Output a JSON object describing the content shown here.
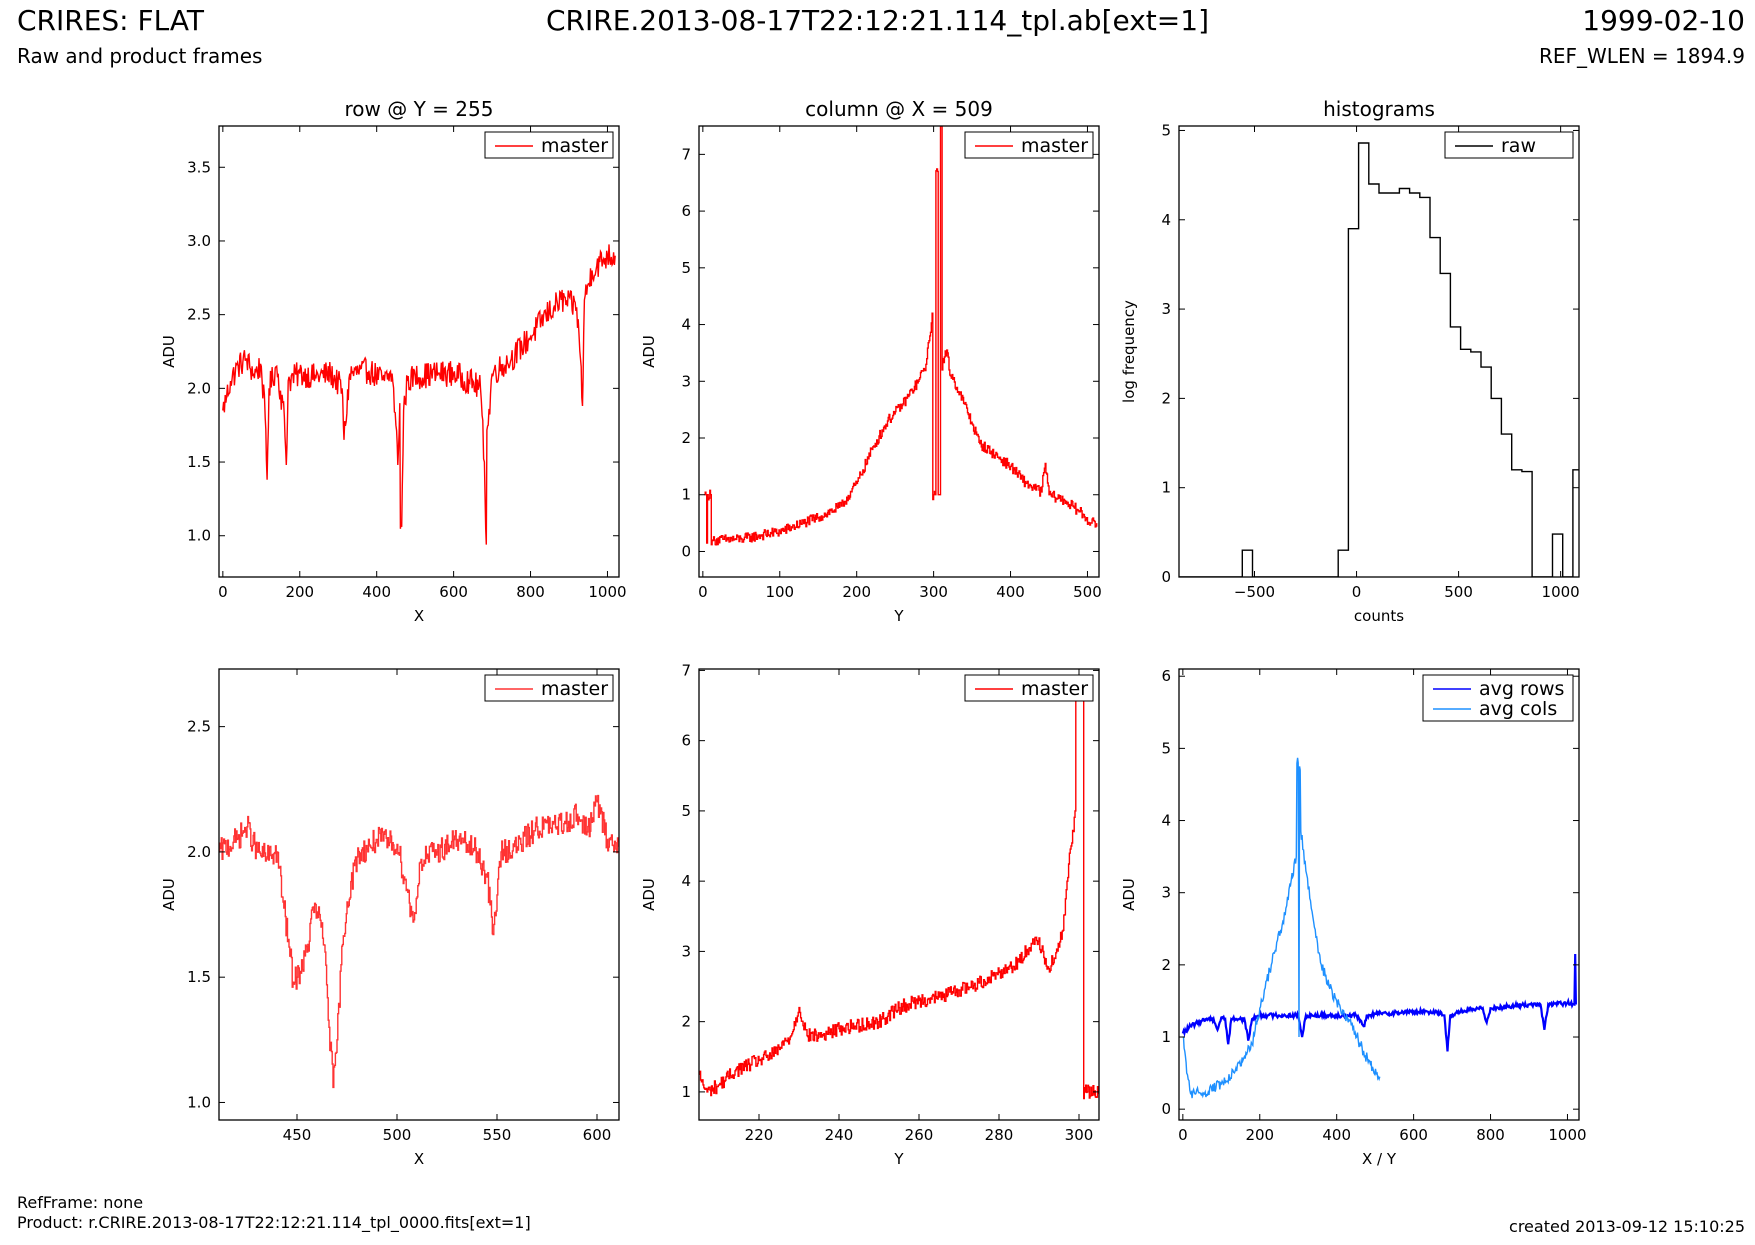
{
  "header": {
    "title": "CRIRES: FLAT",
    "subtitle": "Raw and product frames",
    "center_title": "CRIRE.2013-08-17T22:12:21.114_tpl.ab[ext=1]",
    "date": "1999-02-10",
    "ref_wlen": "REF_WLEN = 1894.9"
  },
  "footer": {
    "ref_frame": "RefFrame: none",
    "product": "Product: r.CRIRE.2013-08-17T22:12:21.114_tpl_0000.fits[ext=1]",
    "created": "created 2013-09-12 15:10:25"
  },
  "colors": {
    "master": "#ff0000",
    "master_zoom": "#ff3333",
    "raw": "#000000",
    "avg_rows": "#0000ff",
    "avg_cols": "#1e90ff"
  },
  "chart_data": [
    {
      "id": "p1",
      "type": "line",
      "title": "row @ Y = 255",
      "xlabel": "X",
      "ylabel": "ADU",
      "xlim": [
        -10,
        1030
      ],
      "ylim": [
        0.72,
        3.78
      ],
      "xticks": [
        0,
        200,
        400,
        600,
        800,
        1000
      ],
      "yticks": [
        1.0,
        1.5,
        2.0,
        2.5,
        3.0,
        3.5
      ],
      "ytick_decimals": 1,
      "legend": "top-right",
      "series": [
        {
          "name": "master",
          "color": "#ff0000",
          "step": false,
          "x": [
            0,
            10,
            20,
            40,
            60,
            80,
            100,
            110,
            115,
            120,
            140,
            160,
            165,
            170,
            200,
            240,
            280,
            310,
            315,
            330,
            380,
            420,
            440,
            450,
            455,
            460,
            465,
            470,
            480,
            500,
            560,
            600,
            640,
            670,
            680,
            685,
            690,
            700,
            750,
            800,
            840,
            880,
            920,
            930,
            935,
            940,
            960,
            1000,
            1020
          ],
          "y": [
            1.85,
            1.95,
            2.05,
            2.15,
            2.2,
            2.1,
            2.15,
            1.8,
            1.38,
            2.0,
            2.15,
            1.8,
            1.48,
            2.05,
            2.1,
            2.08,
            2.1,
            2.0,
            1.65,
            2.1,
            2.12,
            2.05,
            2.1,
            1.75,
            1.48,
            1.9,
            1.06,
            1.85,
            2.05,
            2.08,
            2.1,
            2.1,
            2.05,
            2.0,
            1.5,
            0.94,
            1.75,
            2.1,
            2.2,
            2.35,
            2.5,
            2.6,
            2.55,
            2.2,
            1.88,
            2.6,
            2.8,
            2.9,
            2.9
          ],
          "noise": 0.09
        }
      ]
    },
    {
      "id": "p2",
      "type": "line",
      "title": "column @ X = 509",
      "xlabel": "Y",
      "ylabel": "ADU",
      "xlim": [
        -5,
        515
      ],
      "ylim": [
        -0.45,
        7.5
      ],
      "xticks": [
        0,
        100,
        200,
        300,
        400,
        500
      ],
      "yticks": [
        0,
        1,
        2,
        3,
        4,
        5,
        6,
        7
      ],
      "ytick_decimals": 0,
      "legend": "top-right",
      "series": [
        {
          "name": "master",
          "color": "#ff0000",
          "step": true,
          "x": [
            2,
            4,
            5,
            6,
            10,
            11,
            12,
            15,
            50,
            100,
            150,
            180,
            200,
            220,
            240,
            260,
            280,
            290,
            295,
            298,
            300,
            302,
            305,
            306,
            307,
            308,
            309,
            310,
            311,
            312,
            318,
            320,
            340,
            360,
            380,
            400,
            420,
            440,
            445,
            450,
            470,
            490,
            505,
            512
          ],
          "y": [
            1.0,
            1.0,
            0.15,
            1.0,
            1.0,
            0.12,
            0.2,
            0.2,
            0.22,
            0.35,
            0.6,
            0.8,
            1.2,
            1.8,
            2.3,
            2.6,
            3.0,
            3.3,
            3.8,
            4.2,
            1.0,
            1.0,
            6.7,
            1.0,
            1.0,
            1.0,
            7.5,
            7.5,
            3.2,
            3.4,
            3.5,
            3.2,
            2.6,
            1.9,
            1.7,
            1.5,
            1.2,
            1.05,
            1.55,
            1.0,
            0.9,
            0.7,
            0.5,
            0.5
          ],
          "noise": 0.09
        }
      ]
    },
    {
      "id": "p3",
      "type": "line",
      "title": "histograms",
      "xlabel": "counts",
      "ylabel": "log frequency",
      "xlim": [
        -870,
        1090
      ],
      "ylim": [
        0,
        5.05
      ],
      "xticks": [
        -500,
        0,
        500,
        1000
      ],
      "yticks": [
        0,
        1,
        2,
        3,
        4,
        5
      ],
      "ytick_decimals": 0,
      "legend": "top-right",
      "series": [
        {
          "name": "raw",
          "color": "#000000",
          "step": true,
          "x": [
            -870,
            -560,
            -510,
            -90,
            -40,
            10,
            60,
            110,
            160,
            210,
            260,
            310,
            360,
            410,
            460,
            510,
            560,
            610,
            660,
            710,
            760,
            810,
            860,
            910,
            960,
            1010,
            1060,
            1090
          ],
          "y": [
            0,
            0.3,
            0,
            0.3,
            3.9,
            4.86,
            4.4,
            4.3,
            4.3,
            4.35,
            4.3,
            4.25,
            3.8,
            3.4,
            2.8,
            2.55,
            2.52,
            2.35,
            2.0,
            1.6,
            1.2,
            1.18,
            0,
            0,
            0.48,
            0,
            1.2,
            1.2
          ],
          "noise": 0
        }
      ]
    },
    {
      "id": "p4",
      "type": "line",
      "xlabel": "X",
      "ylabel": "ADU",
      "xlim": [
        411,
        611
      ],
      "ylim": [
        0.93,
        2.73
      ],
      "xticks": [
        450,
        500,
        550,
        600
      ],
      "yticks": [
        1.0,
        1.5,
        2.0,
        2.5
      ],
      "ytick_decimals": 1,
      "legend": "top-right",
      "series": [
        {
          "name": "master",
          "color": "#ff3333",
          "step": true,
          "x": [
            411,
            420,
            425,
            430,
            435,
            440,
            443,
            446,
            448,
            450,
            455,
            458,
            460,
            462,
            464,
            466,
            468,
            470,
            472,
            475,
            480,
            490,
            500,
            505,
            508,
            512,
            520,
            530,
            540,
            545,
            548,
            552,
            560,
            570,
            580,
            590,
            595,
            600,
            605,
            611
          ],
          "y": [
            2.0,
            2.05,
            2.1,
            2.0,
            1.98,
            2.0,
            1.8,
            1.62,
            1.48,
            1.5,
            1.6,
            1.78,
            1.76,
            1.7,
            1.6,
            1.3,
            1.06,
            1.25,
            1.55,
            1.8,
            1.98,
            2.05,
            2.03,
            1.85,
            1.72,
            1.97,
            2.0,
            2.05,
            2.0,
            1.9,
            1.67,
            2.0,
            2.02,
            2.1,
            2.1,
            2.15,
            2.08,
            2.2,
            2.05,
            2.02
          ],
          "noise": 0.05
        }
      ]
    },
    {
      "id": "p5",
      "type": "line",
      "xlabel": "Y",
      "ylabel": "ADU",
      "xlim": [
        205,
        305
      ],
      "ylim": [
        0.6,
        7.02
      ],
      "xticks": [
        220,
        240,
        260,
        280,
        300
      ],
      "yticks": [
        1,
        2,
        3,
        4,
        5,
        6,
        7
      ],
      "ytick_decimals": 0,
      "legend": "top-right",
      "series": [
        {
          "name": "master",
          "color": "#ff0000",
          "step": true,
          "x": [
            205,
            206,
            207,
            210,
            214,
            220,
            224,
            228,
            230,
            232,
            236,
            240,
            250,
            255,
            260,
            265,
            270,
            275,
            280,
            285,
            289,
            291,
            292,
            294,
            296,
            297,
            298,
            299,
            300,
            301,
            301.5,
            302,
            305
          ],
          "y": [
            1.25,
            1.1,
            1.0,
            1.1,
            1.3,
            1.45,
            1.55,
            1.8,
            2.2,
            1.8,
            1.8,
            1.9,
            2.0,
            2.2,
            2.3,
            2.35,
            2.45,
            2.55,
            2.7,
            2.85,
            3.2,
            3.0,
            2.75,
            2.9,
            3.3,
            4.0,
            4.5,
            5.0,
            6.7,
            6.7,
            1.0,
            1.0,
            1.0
          ],
          "noise": 0.1
        }
      ]
    },
    {
      "id": "p6",
      "type": "line",
      "xlabel": "X / Y",
      "ylabel": "ADU",
      "xlim": [
        -10,
        1030
      ],
      "ylim": [
        -0.15,
        6.1
      ],
      "xticks": [
        0,
        200,
        400,
        600,
        800,
        1000
      ],
      "yticks": [
        0,
        1,
        2,
        3,
        4,
        5,
        6
      ],
      "ytick_decimals": 0,
      "legend": "top-right",
      "series": [
        {
          "name": "avg rows",
          "color": "#0000ff",
          "step": false,
          "x": [
            0,
            20,
            60,
            80,
            90,
            100,
            110,
            118,
            126,
            140,
            160,
            170,
            180,
            200,
            240,
            300,
            310,
            320,
            400,
            450,
            470,
            480,
            500,
            600,
            660,
            680,
            688,
            695,
            720,
            780,
            790,
            800,
            900,
            930,
            940,
            950,
            1000,
            1018,
            1020,
            1022
          ],
          "y": [
            1.05,
            1.15,
            1.25,
            1.25,
            1.1,
            1.27,
            1.25,
            0.9,
            1.25,
            1.25,
            1.25,
            0.95,
            1.25,
            1.3,
            1.3,
            1.3,
            1.0,
            1.3,
            1.3,
            1.3,
            1.15,
            1.3,
            1.32,
            1.35,
            1.35,
            1.3,
            0.8,
            1.3,
            1.35,
            1.4,
            1.2,
            1.4,
            1.45,
            1.45,
            1.1,
            1.45,
            1.47,
            1.45,
            2.15,
            1.45
          ],
          "noise": 0.03
        },
        {
          "name": "avg cols",
          "color": "#1e90ff",
          "step": false,
          "x": [
            0,
            5,
            10,
            20,
            50,
            100,
            150,
            180,
            200,
            230,
            260,
            280,
            295,
            300,
            302,
            305,
            310,
            312,
            320,
            340,
            360,
            380,
            400,
            420,
            440,
            460,
            480,
            495,
            505,
            512
          ],
          "y": [
            1.0,
            0.8,
            0.5,
            0.22,
            0.22,
            0.35,
            0.6,
            0.9,
            1.4,
            2.0,
            2.6,
            3.1,
            3.5,
            4.8,
            1.0,
            4.7,
            3.8,
            3.6,
            3.3,
            2.6,
            2.0,
            1.7,
            1.5,
            1.3,
            1.2,
            0.9,
            0.7,
            0.55,
            0.5,
            0.45
          ],
          "noise": 0.08
        }
      ]
    }
  ]
}
